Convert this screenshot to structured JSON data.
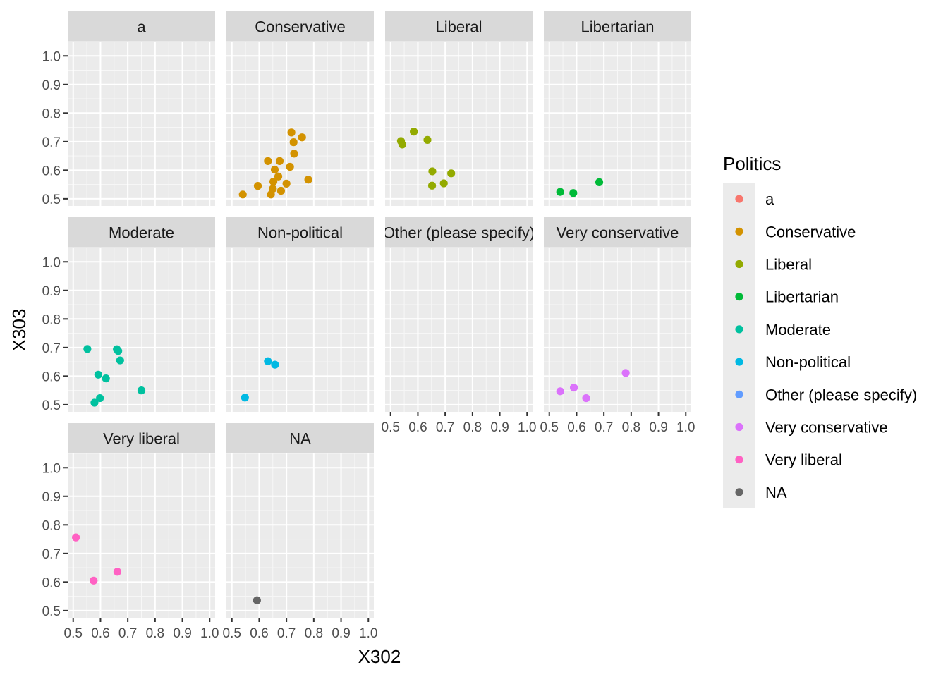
{
  "chart_data": {
    "type": "scatter",
    "xlabel": "X302",
    "ylabel": "X303",
    "xlim": [
      0.48,
      1.02
    ],
    "ylim": [
      0.475,
      1.05
    ],
    "x_ticks": [
      0.5,
      0.6,
      0.7,
      0.8,
      0.9,
      1.0
    ],
    "x_tick_labels": [
      "0.5",
      "0.6",
      "0.7",
      "0.8",
      "0.9",
      "1.0"
    ],
    "y_ticks": [
      0.5,
      0.6,
      0.7,
      0.8,
      0.9,
      1.0
    ],
    "y_tick_labels": [
      "0.5",
      "0.6",
      "0.7",
      "0.8",
      "0.9",
      "1.0"
    ],
    "grid": true,
    "legend": {
      "title": "Politics",
      "position": "right",
      "entries": [
        {
          "label": "a",
          "color": "#F8766D"
        },
        {
          "label": "Conservative",
          "color": "#D39200"
        },
        {
          "label": "Liberal",
          "color": "#93AA00"
        },
        {
          "label": "Libertarian",
          "color": "#00BA38"
        },
        {
          "label": "Moderate",
          "color": "#00C19F"
        },
        {
          "label": "Non-political",
          "color": "#00B9E3"
        },
        {
          "label": "Other (please specify)",
          "color": "#619CFF"
        },
        {
          "label": "Very conservative",
          "color": "#DB72FB"
        },
        {
          "label": "Very liberal",
          "color": "#FF61C3"
        },
        {
          "label": "NA",
          "color": "#666666"
        }
      ]
    },
    "panels": [
      {
        "strip": "a",
        "color": "#F8766D",
        "points": []
      },
      {
        "strip": "Conservative",
        "color": "#D39200",
        "points": [
          [
            0.54,
            0.515
          ],
          [
            0.595,
            0.545
          ],
          [
            0.632,
            0.632
          ],
          [
            0.643,
            0.515
          ],
          [
            0.65,
            0.535
          ],
          [
            0.652,
            0.56
          ],
          [
            0.657,
            0.602
          ],
          [
            0.67,
            0.578
          ],
          [
            0.675,
            0.632
          ],
          [
            0.68,
            0.528
          ],
          [
            0.7,
            0.553
          ],
          [
            0.713,
            0.612
          ],
          [
            0.718,
            0.732
          ],
          [
            0.726,
            0.698
          ],
          [
            0.728,
            0.658
          ],
          [
            0.757,
            0.715
          ],
          [
            0.78,
            0.567
          ]
        ]
      },
      {
        "strip": "Liberal",
        "color": "#93AA00",
        "points": [
          [
            0.538,
            0.702
          ],
          [
            0.543,
            0.69
          ],
          [
            0.585,
            0.735
          ],
          [
            0.635,
            0.706
          ],
          [
            0.652,
            0.546
          ],
          [
            0.653,
            0.596
          ],
          [
            0.695,
            0.554
          ],
          [
            0.722,
            0.589
          ]
        ]
      },
      {
        "strip": "Libertarian",
        "color": "#00BA38",
        "points": [
          [
            0.54,
            0.524
          ],
          [
            0.588,
            0.52
          ],
          [
            0.683,
            0.558
          ]
        ]
      },
      {
        "strip": "Moderate",
        "color": "#00C19F",
        "points": [
          [
            0.552,
            0.695
          ],
          [
            0.578,
            0.507
          ],
          [
            0.592,
            0.605
          ],
          [
            0.598,
            0.523
          ],
          [
            0.62,
            0.592
          ],
          [
            0.66,
            0.694
          ],
          [
            0.665,
            0.688
          ],
          [
            0.672,
            0.655
          ],
          [
            0.75,
            0.55
          ]
        ]
      },
      {
        "strip": "Non-political",
        "color": "#00B9E3",
        "points": [
          [
            0.548,
            0.525
          ],
          [
            0.632,
            0.652
          ],
          [
            0.658,
            0.64
          ]
        ]
      },
      {
        "strip": "Other (please specify)",
        "color": "#619CFF",
        "points": []
      },
      {
        "strip": "Very conservative",
        "color": "#DB72FB",
        "points": [
          [
            0.54,
            0.547
          ],
          [
            0.59,
            0.56
          ],
          [
            0.635,
            0.523
          ],
          [
            0.78,
            0.611
          ]
        ]
      },
      {
        "strip": "Very liberal",
        "color": "#FF61C3",
        "points": [
          [
            0.51,
            0.756
          ],
          [
            0.575,
            0.605
          ],
          [
            0.662,
            0.636
          ]
        ]
      },
      {
        "strip": "NA",
        "color": "#666666",
        "points": [
          [
            0.592,
            0.536
          ]
        ]
      }
    ]
  }
}
